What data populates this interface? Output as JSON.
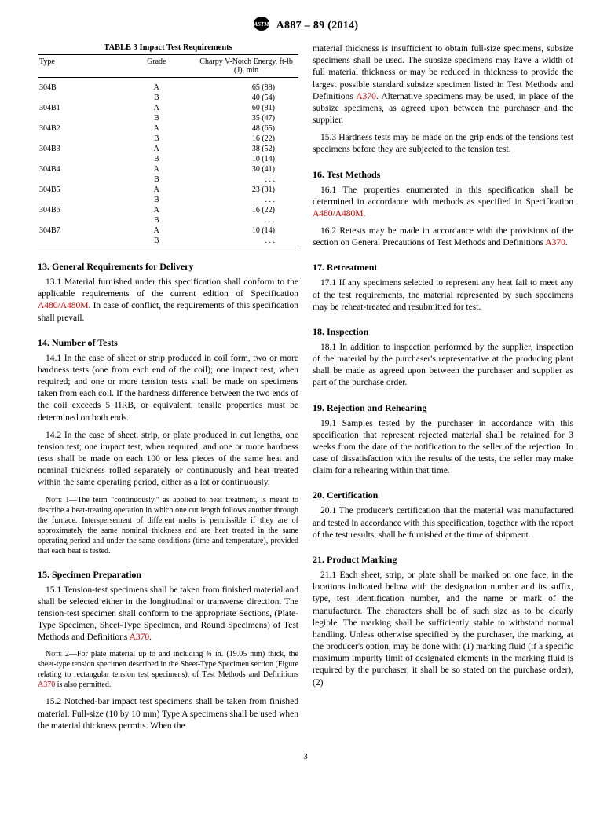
{
  "header": {
    "designation": "A887 – 89 (2014)"
  },
  "table3": {
    "title": "TABLE 3 Impact Test Requirements",
    "columns": [
      "Type",
      "Grade",
      "Charpy V-Notch Energy, ft-lb (J), min"
    ],
    "rows": [
      {
        "type": "304B",
        "grade": "A",
        "val": "65 (88)"
      },
      {
        "type": "",
        "grade": "B",
        "val": "40 (54)"
      },
      {
        "type": "304B1",
        "grade": "A",
        "val": "60 (81)"
      },
      {
        "type": "",
        "grade": "B",
        "val": "35 (47)"
      },
      {
        "type": "304B2",
        "grade": "A",
        "val": "48 (65)"
      },
      {
        "type": "",
        "grade": "B",
        "val": "16 (22)"
      },
      {
        "type": "304B3",
        "grade": "A",
        "val": "38 (52)"
      },
      {
        "type": "",
        "grade": "B",
        "val": "10 (14)"
      },
      {
        "type": "304B4",
        "grade": "A",
        "val": "30 (41)"
      },
      {
        "type": "",
        "grade": "B",
        "val": ". . ."
      },
      {
        "type": "304B5",
        "grade": "A",
        "val": "23 (31)"
      },
      {
        "type": "",
        "grade": "B",
        "val": ". . ."
      },
      {
        "type": "304B6",
        "grade": "A",
        "val": "16 (22)"
      },
      {
        "type": "",
        "grade": "B",
        "val": ". . ."
      },
      {
        "type": "304B7",
        "grade": "A",
        "val": "10 (14)"
      },
      {
        "type": "",
        "grade": "B",
        "val": ". . ."
      }
    ]
  },
  "left": {
    "s13": {
      "heading": "13. General Requirements for Delivery",
      "p1a": "13.1 Material furnished under this specification shall conform to the applicable requirements of the current edition of Specification ",
      "p1link": "A480/A480M",
      "p1b": ". In case of conflict, the requirements of this specification shall prevail."
    },
    "s14": {
      "heading": "14. Number of Tests",
      "p1": "14.1 In the case of sheet or strip produced in coil form, two or more hardness tests (one from each end of the coil); one impact test, when required; and one or more tension tests shall be made on specimens taken from each coil. If the hardness difference between the two ends of the coil exceeds 5 HRB, or equivalent, tensile properties must be determined on both ends.",
      "p2": "14.2 In the case of sheet, strip, or plate produced in cut lengths, one tension test; one impact test, when required; and one or more hardness tests shall be made on each 100 or less pieces of the same heat and nominal thickness rolled separately or continuously and heat treated within the same operating period, either as a lot or continuously.",
      "note1_label": "Note 1—",
      "note1": "The term \"continuously,\" as applied to heat treatment, is meant to describe a heat-treating operation in which one cut length follows another through the furnace. Interspersement of different melts is permissible if they are of approximately the same nominal thickness and are heat treated in the same operating period and under the same conditions (time and temperature), provided that each heat is tested."
    },
    "s15": {
      "heading": "15. Specimen Preparation",
      "p1a": "15.1 Tension-test specimens shall be taken from finished material and shall be selected either in the longitudinal or transverse direction. The tension-test specimen shall conform to the appropriate Sections, (Plate-Type Specimen, Sheet-Type Specimen, and Round Specimens) of Test Methods and Definitions ",
      "p1link": "A370",
      "p1b": ".",
      "note2_label": "Note 2—",
      "note2a": "For plate material up to and including ¾ in. (19.05 mm) thick, the sheet-type tension specimen described in the Sheet-Type Specimen section (Figure relating to rectangular tension test specimens), of Test Methods and Definitions ",
      "note2link": "A370",
      "note2b": " is also permitted.",
      "p2": "15.2 Notched-bar impact test specimens shall be taken from finished material. Full-size (10 by 10 mm) Type A specimens shall be used when the material thickness permits. When the"
    }
  },
  "right": {
    "s15cont": {
      "p2cont_a": "material thickness is insufficient to obtain full-size specimens, subsize specimens shall be used. The subsize specimens may have a width of full material thickness or may be reduced in thickness to provide the largest possible standard subsize specimen listed in Test Methods and Definitions ",
      "p2cont_link": "A370",
      "p2cont_b": ". Alternative specimens may be used, in place of the subsize specimens, as agreed upon between the purchaser and the supplier.",
      "p3": "15.3 Hardness tests may be made on the grip ends of the tensions test specimens before they are subjected to the tension test."
    },
    "s16": {
      "heading": "16. Test Methods",
      "p1a": "16.1 The properties enumerated in this specification shall be determined in accordance with methods as specified in Specification ",
      "p1link": "A480/A480M",
      "p1b": ".",
      "p2a": "16.2 Retests may be made in accordance with the provisions of the section on General Precautions of Test Methods and Definitions ",
      "p2link": "A370",
      "p2b": "."
    },
    "s17": {
      "heading": "17. Retreatment",
      "p1": "17.1 If any specimens selected to represent any heat fail to meet any of the test requirements, the material represented by such specimens may be reheat-treated and resubmitted for test."
    },
    "s18": {
      "heading": "18. Inspection",
      "p1": "18.1 In addition to inspection performed by the supplier, inspection of the material by the purchaser's representative at the producing plant shall be made as agreed upon between the purchaser and supplier as part of the purchase order."
    },
    "s19": {
      "heading": "19. Rejection and Rehearing",
      "p1": "19.1 Samples tested by the purchaser in accordance with this specification that represent rejected material shall be retained for 3 weeks from the date of the notification to the seller of the rejection. In case of dissatisfaction with the results of the tests, the seller may make claim for a rehearing within that time."
    },
    "s20": {
      "heading": "20. Certification",
      "p1": "20.1 The producer's certification that the material was manufactured and tested in accordance with this specification, together with the report of the test results, shall be furnished at the time of shipment."
    },
    "s21": {
      "heading": "21. Product Marking",
      "p1": "21.1 Each sheet, strip, or plate shall be marked on one face, in the locations indicated below with the designation number and its suffix, type, test identification number, and the name or mark of the manufacturer. The characters shall be of such size as to be clearly legible. The marking shall be sufficiently stable to withstand normal handling. Unless otherwise specified by the purchaser, the marking, at the producer's option, may be done with: (1) marking fluid (if a specific maximum impurity limit of designated elements in the marking fluid is required by the purchaser, it shall be so stated on the purchase order), (2)"
    }
  },
  "pagenum": "3",
  "colors": {
    "link": "#cc0000",
    "text": "#000000",
    "bg": "#ffffff"
  }
}
